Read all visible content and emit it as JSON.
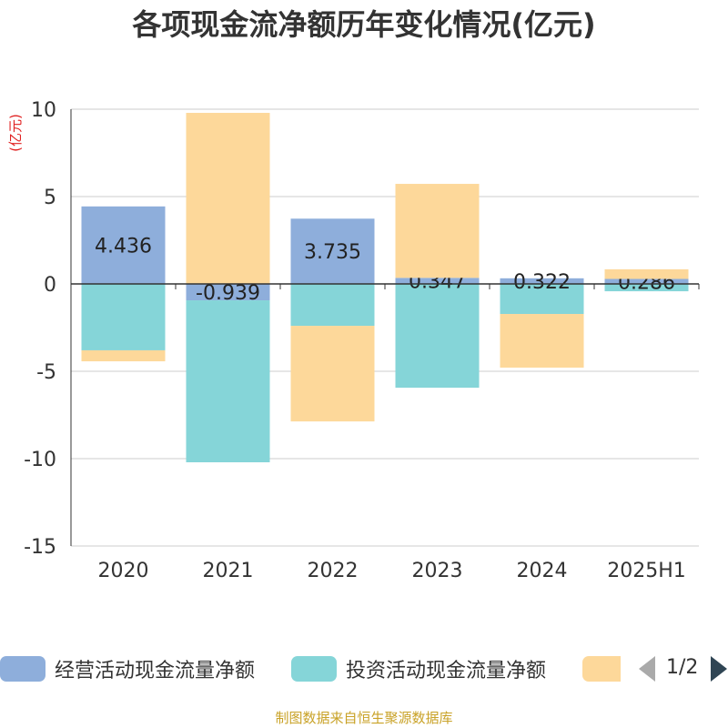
{
  "source": "制图数据来自恒生聚源数据库",
  "legend": {
    "page": "1/2"
  },
  "chart_data": {
    "type": "bar",
    "stacked": true,
    "title": "各项现金流净额历年变化情况(亿元)",
    "xlabel": "",
    "ylabel": "(亿元)",
    "categories": [
      "2020",
      "2021",
      "2022",
      "2023",
      "2024",
      "2025H1"
    ],
    "ylim": [
      -15,
      10
    ],
    "yticks": [
      10,
      5,
      0,
      -5,
      -10,
      -15
    ],
    "grid": true,
    "legend_position": "bottom",
    "data_labels_series": 0,
    "series": [
      {
        "name": "经营活动现金流量净额",
        "color": "#8eaedb",
        "values": [
          4.436,
          -0.939,
          3.735,
          0.347,
          0.322,
          0.286
        ]
      },
      {
        "name": "投资活动现金流量净额",
        "color": "#85d5d8",
        "values": [
          -3.8,
          -9.27,
          -2.4,
          -5.94,
          -1.72,
          -0.42
        ]
      },
      {
        "name": "",
        "color": "#fdd89a",
        "values": [
          -0.63,
          9.79,
          -5.47,
          5.38,
          -3.07,
          0.55
        ]
      }
    ]
  }
}
